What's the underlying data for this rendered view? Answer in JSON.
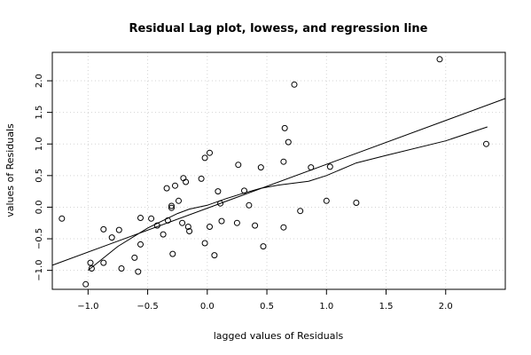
{
  "chart_data": {
    "type": "scatter",
    "title": "Residual Lag plot, lowess, and regression line",
    "xlabel": "lagged values of Residuals",
    "ylabel": "values of Residuals",
    "xlim": [
      -1.3,
      2.5
    ],
    "ylim": [
      -1.3,
      2.45
    ],
    "xticks": [
      -1.0,
      -0.5,
      0.0,
      0.5,
      1.0,
      1.5,
      2.0
    ],
    "xtick_labels": [
      "−1.0",
      "−0.5",
      "0.0",
      "0.5",
      "1.0",
      "1.5",
      "2.0"
    ],
    "yticks": [
      -1.0,
      -0.5,
      0.0,
      0.5,
      1.0,
      1.5,
      2.0
    ],
    "ytick_labels": [
      "−1.0",
      "−0.5",
      "0.0",
      "0.5",
      "1.0",
      "1.5",
      "2.0"
    ],
    "grid": true,
    "points": [
      [
        -1.22,
        -0.18
      ],
      [
        -1.02,
        -1.22
      ],
      [
        -0.98,
        -0.88
      ],
      [
        -0.97,
        -0.97
      ],
      [
        -0.87,
        -0.35
      ],
      [
        -0.87,
        -0.88
      ],
      [
        -0.8,
        -0.48
      ],
      [
        -0.74,
        -0.36
      ],
      [
        -0.72,
        -0.97
      ],
      [
        -0.61,
        -0.8
      ],
      [
        -0.58,
        -1.02
      ],
      [
        -0.56,
        -0.17
      ],
      [
        -0.56,
        -0.59
      ],
      [
        -0.47,
        -0.18
      ],
      [
        -0.42,
        -0.29
      ],
      [
        -0.37,
        -0.43
      ],
      [
        -0.34,
        0.3
      ],
      [
        -0.33,
        -0.21
      ],
      [
        -0.3,
        -0.01
      ],
      [
        -0.3,
        0.02
      ],
      [
        -0.29,
        -0.74
      ],
      [
        -0.27,
        0.34
      ],
      [
        -0.24,
        0.1
      ],
      [
        -0.21,
        -0.25
      ],
      [
        -0.2,
        0.46
      ],
      [
        -0.18,
        0.4
      ],
      [
        -0.16,
        -0.31
      ],
      [
        -0.15,
        -0.38
      ],
      [
        -0.05,
        0.45
      ],
      [
        -0.02,
        0.78
      ],
      [
        -0.02,
        -0.57
      ],
      [
        0.02,
        -0.31
      ],
      [
        0.02,
        0.86
      ],
      [
        0.06,
        -0.76
      ],
      [
        0.09,
        0.25
      ],
      [
        0.11,
        0.06
      ],
      [
        0.12,
        -0.22
      ],
      [
        0.25,
        -0.25
      ],
      [
        0.26,
        0.67
      ],
      [
        0.31,
        0.26
      ],
      [
        0.35,
        0.03
      ],
      [
        0.4,
        -0.29
      ],
      [
        0.45,
        0.63
      ],
      [
        0.47,
        -0.62
      ],
      [
        0.64,
        -0.32
      ],
      [
        0.64,
        0.72
      ],
      [
        0.65,
        1.25
      ],
      [
        0.68,
        1.03
      ],
      [
        0.73,
        1.94
      ],
      [
        0.78,
        -0.06
      ],
      [
        0.87,
        0.63
      ],
      [
        1.0,
        0.1
      ],
      [
        1.03,
        0.64
      ],
      [
        1.25,
        0.07
      ],
      [
        1.95,
        2.34
      ],
      [
        2.34,
        1.0
      ]
    ],
    "lowess": [
      [
        -1.0,
        -1.0
      ],
      [
        -0.75,
        -0.62
      ],
      [
        -0.5,
        -0.33
      ],
      [
        -0.25,
        -0.1
      ],
      [
        -0.15,
        -0.03
      ],
      [
        0.0,
        0.03
      ],
      [
        0.15,
        0.13
      ],
      [
        0.3,
        0.22
      ],
      [
        0.45,
        0.3
      ],
      [
        0.6,
        0.35
      ],
      [
        0.85,
        0.41
      ],
      [
        1.0,
        0.5
      ],
      [
        1.25,
        0.7
      ],
      [
        1.5,
        0.82
      ],
      [
        2.0,
        1.05
      ],
      [
        2.35,
        1.27
      ]
    ],
    "regression": [
      [
        -1.3,
        -0.92
      ],
      [
        2.5,
        1.72
      ]
    ]
  }
}
